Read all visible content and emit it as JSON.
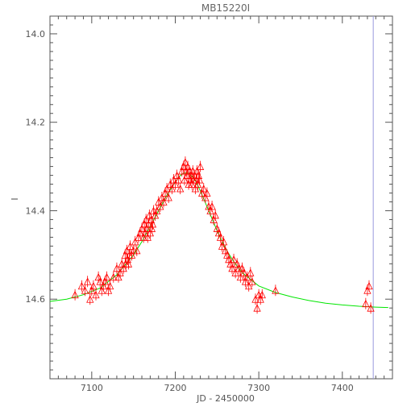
{
  "chart_data": {
    "type": "scatter",
    "title": "MB15220I",
    "xlabel": "JD - 2450000",
    "ylabel": "I",
    "xlim": [
      7050,
      7460
    ],
    "ylim": [
      14.78,
      13.96
    ],
    "y_inverted": true,
    "x_ticks": [
      7100,
      7200,
      7300,
      7400
    ],
    "x_tick_labels": [
      "7100",
      "7200",
      "7300",
      "7400"
    ],
    "y_ticks": [
      14.0,
      14.2,
      14.4,
      14.6
    ],
    "y_tick_labels": [
      "14.0",
      "14.2",
      "14.4",
      "14.6"
    ],
    "grid": false,
    "marker": "triangle",
    "colors": {
      "points": "#ff0000",
      "model": "#00e600",
      "vline": "#9999dd",
      "axes": "#555555"
    },
    "vertical_line_x": 7437,
    "series": [
      {
        "kind": "points",
        "x": [
          7080,
          7088,
          7092,
          7095,
          7098,
          7100,
          7102,
          7105,
          7108,
          7110,
          7112,
          7114,
          7116,
          7118,
          7120,
          7122,
          7126,
          7130,
          7132,
          7134,
          7136,
          7138,
          7140,
          7141,
          7142,
          7143,
          7144,
          7145,
          7146,
          7148,
          7150,
          7152,
          7154,
          7156,
          7158,
          7160,
          7162,
          7163,
          7164,
          7165,
          7166,
          7167,
          7168,
          7169,
          7170,
          7171,
          7172,
          7173,
          7174,
          7176,
          7178,
          7180,
          7182,
          7184,
          7186,
          7188,
          7190,
          7192,
          7194,
          7196,
          7198,
          7200,
          7202,
          7204,
          7206,
          7208,
          7210,
          7211,
          7212,
          7213,
          7214,
          7215,
          7216,
          7217,
          7218,
          7219,
          7220,
          7221,
          7222,
          7223,
          7224,
          7225,
          7226,
          7227,
          7228,
          7229,
          7230,
          7232,
          7234,
          7236,
          7238,
          7240,
          7242,
          7244,
          7246,
          7248,
          7250,
          7252,
          7254,
          7256,
          7258,
          7260,
          7262,
          7264,
          7266,
          7268,
          7270,
          7272,
          7274,
          7276,
          7278,
          7280,
          7282,
          7284,
          7286,
          7288,
          7290,
          7292,
          7296,
          7298,
          7300,
          7302,
          7304,
          7320,
          7428,
          7430,
          7432,
          7434
        ],
        "y": [
          14.59,
          14.57,
          14.58,
          14.56,
          14.6,
          14.58,
          14.57,
          14.59,
          14.55,
          14.56,
          14.58,
          14.57,
          14.56,
          14.55,
          14.58,
          14.57,
          14.55,
          14.53,
          14.55,
          14.54,
          14.52,
          14.53,
          14.5,
          14.52,
          14.49,
          14.51,
          14.52,
          14.5,
          14.48,
          14.5,
          14.49,
          14.47,
          14.49,
          14.46,
          14.45,
          14.44,
          14.46,
          14.43,
          14.45,
          14.42,
          14.44,
          14.46,
          14.43,
          14.41,
          14.45,
          14.42,
          14.44,
          14.43,
          14.4,
          14.41,
          14.4,
          14.38,
          14.39,
          14.37,
          14.38,
          14.36,
          14.35,
          14.37,
          14.34,
          14.35,
          14.33,
          14.34,
          14.32,
          14.33,
          14.35,
          14.31,
          14.3,
          14.33,
          14.29,
          14.31,
          14.32,
          14.3,
          14.34,
          14.31,
          14.33,
          14.32,
          14.34,
          14.31,
          14.33,
          14.32,
          14.35,
          14.33,
          14.31,
          14.34,
          14.32,
          14.33,
          14.3,
          14.36,
          14.35,
          14.37,
          14.36,
          14.39,
          14.4,
          14.39,
          14.42,
          14.41,
          14.44,
          14.45,
          14.46,
          14.48,
          14.47,
          14.49,
          14.5,
          14.51,
          14.52,
          14.53,
          14.51,
          14.54,
          14.52,
          14.53,
          14.55,
          14.53,
          14.54,
          14.56,
          14.55,
          14.57,
          14.54,
          14.56,
          14.6,
          14.62,
          14.59,
          14.6,
          14.59,
          14.58,
          14.61,
          14.58,
          14.57,
          14.62
        ]
      },
      {
        "kind": "model",
        "x": [
          7050,
          7070,
          7090,
          7110,
          7130,
          7150,
          7160,
          7170,
          7180,
          7190,
          7200,
          7205,
          7210,
          7215,
          7220,
          7225,
          7230,
          7240,
          7250,
          7260,
          7270,
          7280,
          7300,
          7320,
          7340,
          7360,
          7380,
          7400,
          7420,
          7440,
          7455
        ],
        "y": [
          14.605,
          14.6,
          14.59,
          14.575,
          14.545,
          14.5,
          14.47,
          14.435,
          14.4,
          14.365,
          14.335,
          14.322,
          14.315,
          14.315,
          14.322,
          14.335,
          14.355,
          14.4,
          14.445,
          14.485,
          14.515,
          14.54,
          14.57,
          14.585,
          14.595,
          14.603,
          14.609,
          14.613,
          14.616,
          14.618,
          14.619
        ]
      }
    ]
  }
}
